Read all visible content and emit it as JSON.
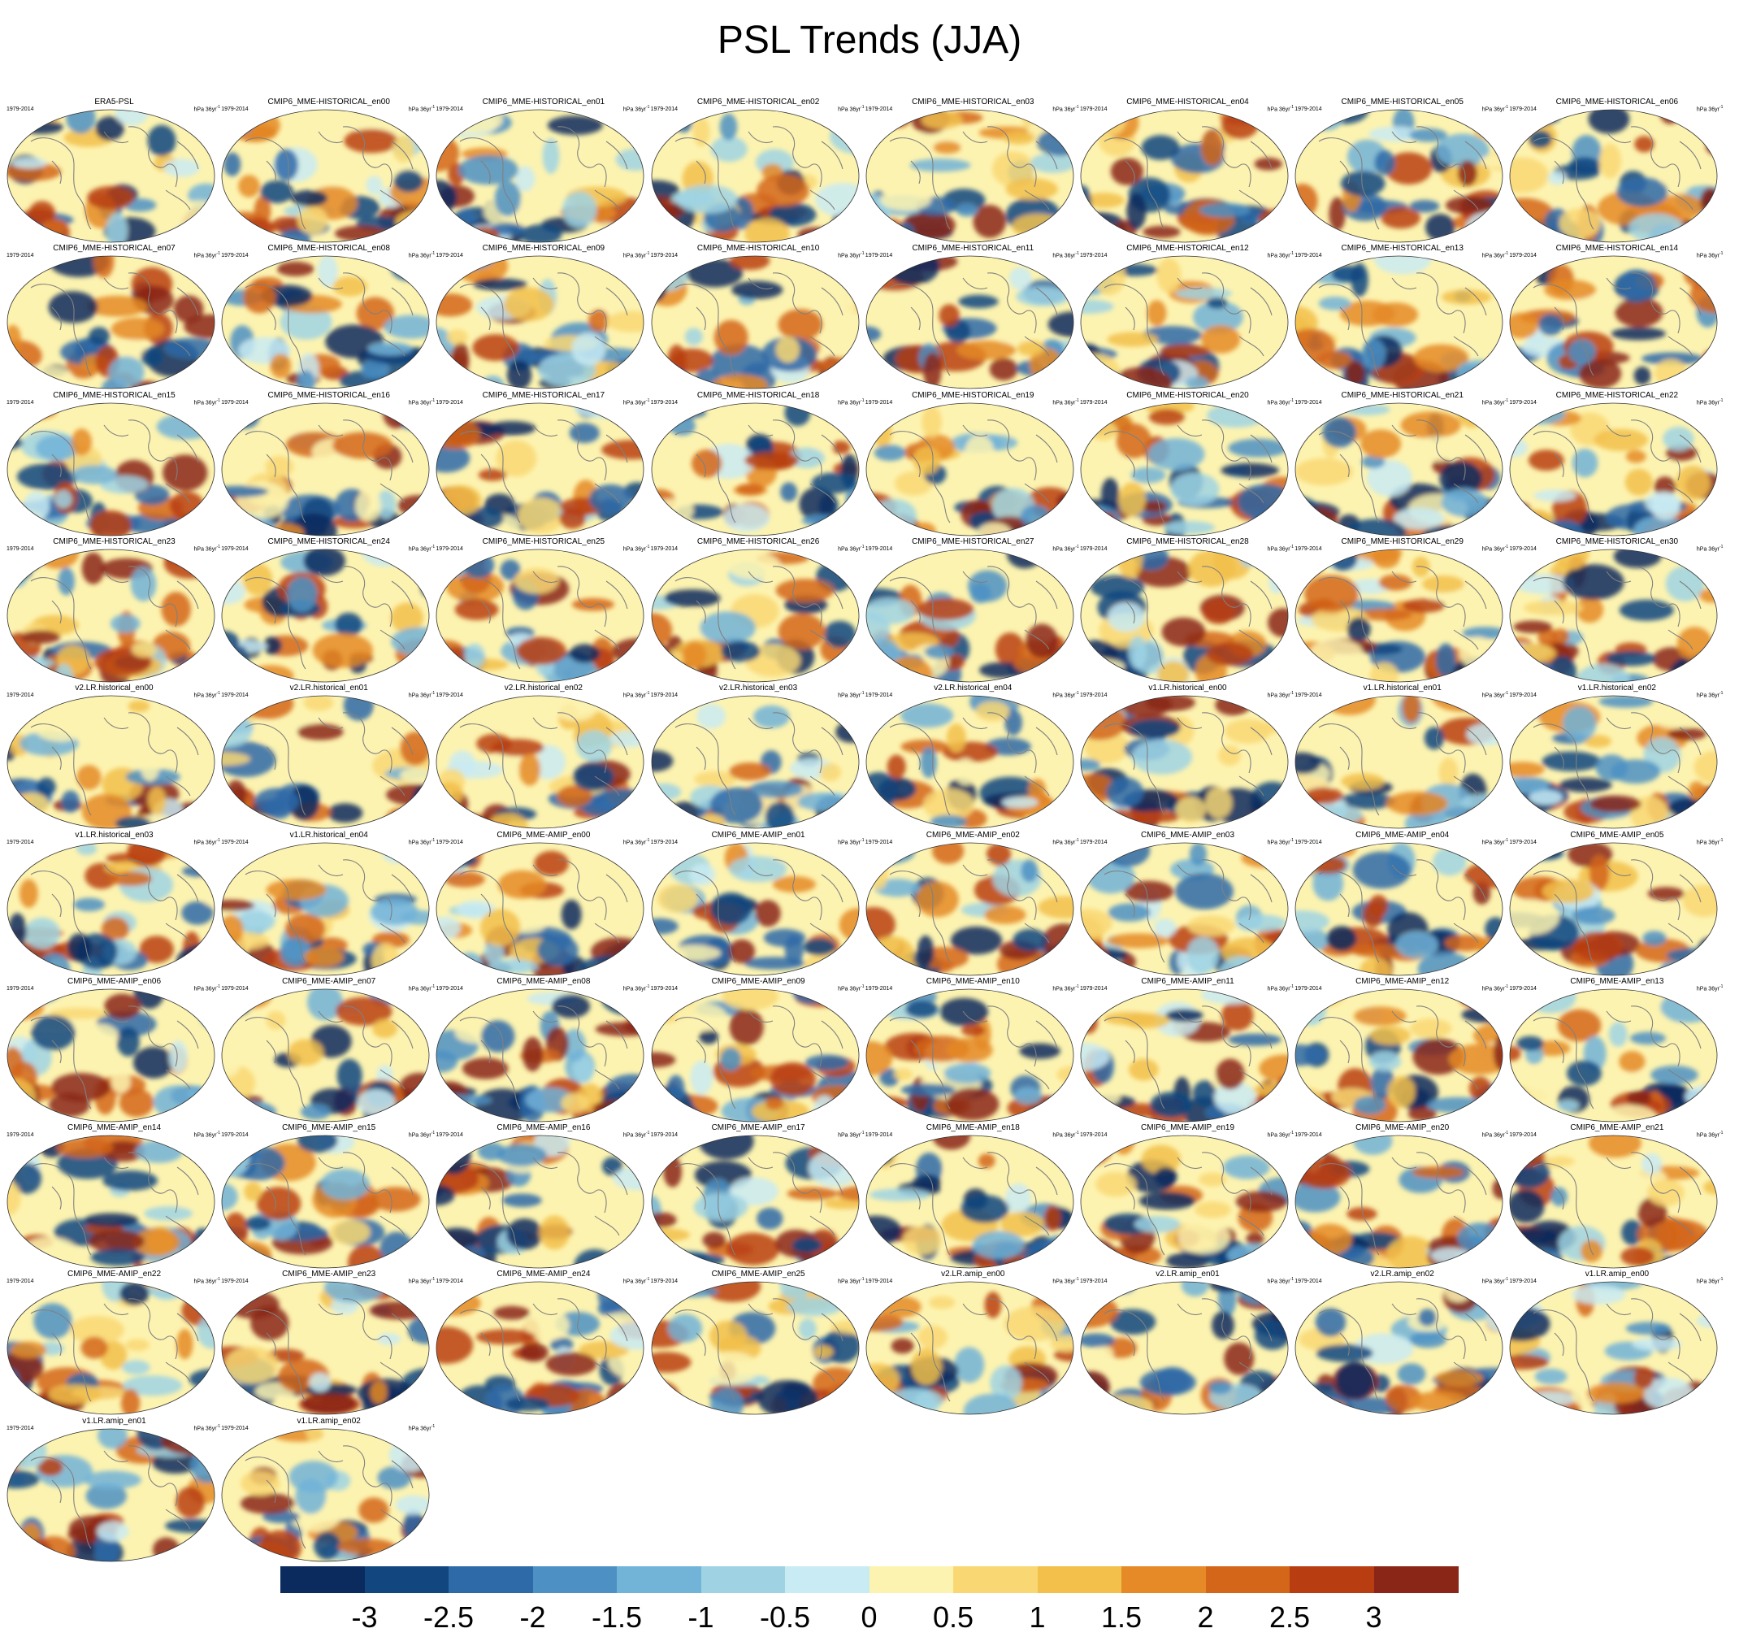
{
  "title": "PSL Trends (JJA)",
  "period": "1979-2014",
  "units": "hPa 36yr",
  "units_superscript": "-1",
  "panels": [
    "ERA5-PSL",
    "CMIP6_MME-HISTORICAL_en00",
    "CMIP6_MME-HISTORICAL_en01",
    "CMIP6_MME-HISTORICAL_en02",
    "CMIP6_MME-HISTORICAL_en03",
    "CMIP6_MME-HISTORICAL_en04",
    "CMIP6_MME-HISTORICAL_en05",
    "CMIP6_MME-HISTORICAL_en06",
    "CMIP6_MME-HISTORICAL_en07",
    "CMIP6_MME-HISTORICAL_en08",
    "CMIP6_MME-HISTORICAL_en09",
    "CMIP6_MME-HISTORICAL_en10",
    "CMIP6_MME-HISTORICAL_en11",
    "CMIP6_MME-HISTORICAL_en12",
    "CMIP6_MME-HISTORICAL_en13",
    "CMIP6_MME-HISTORICAL_en14",
    "CMIP6_MME-HISTORICAL_en15",
    "CMIP6_MME-HISTORICAL_en16",
    "CMIP6_MME-HISTORICAL_en17",
    "CMIP6_MME-HISTORICAL_en18",
    "CMIP6_MME-HISTORICAL_en19",
    "CMIP6_MME-HISTORICAL_en20",
    "CMIP6_MME-HISTORICAL_en21",
    "CMIP6_MME-HISTORICAL_en22",
    "CMIP6_MME-HISTORICAL_en23",
    "CMIP6_MME-HISTORICAL_en24",
    "CMIP6_MME-HISTORICAL_en25",
    "CMIP6_MME-HISTORICAL_en26",
    "CMIP6_MME-HISTORICAL_en27",
    "CMIP6_MME-HISTORICAL_en28",
    "CMIP6_MME-HISTORICAL_en29",
    "CMIP6_MME-HISTORICAL_en30",
    "v2.LR.historical_en00",
    "v2.LR.historical_en01",
    "v2.LR.historical_en02",
    "v2.LR.historical_en03",
    "v2.LR.historical_en04",
    "v1.LR.historical_en00",
    "v1.LR.historical_en01",
    "v1.LR.historical_en02",
    "v1.LR.historical_en03",
    "v1.LR.historical_en04",
    "CMIP6_MME-AMIP_en00",
    "CMIP6_MME-AMIP_en01",
    "CMIP6_MME-AMIP_en02",
    "CMIP6_MME-AMIP_en03",
    "CMIP6_MME-AMIP_en04",
    "CMIP6_MME-AMIP_en05",
    "CMIP6_MME-AMIP_en06",
    "CMIP6_MME-AMIP_en07",
    "CMIP6_MME-AMIP_en08",
    "CMIP6_MME-AMIP_en09",
    "CMIP6_MME-AMIP_en10",
    "CMIP6_MME-AMIP_en11",
    "CMIP6_MME-AMIP_en12",
    "CMIP6_MME-AMIP_en13",
    "CMIP6_MME-AMIP_en14",
    "CMIP6_MME-AMIP_en15",
    "CMIP6_MME-AMIP_en16",
    "CMIP6_MME-AMIP_en17",
    "CMIP6_MME-AMIP_en18",
    "CMIP6_MME-AMIP_en19",
    "CMIP6_MME-AMIP_en20",
    "CMIP6_MME-AMIP_en21",
    "CMIP6_MME-AMIP_en22",
    "CMIP6_MME-AMIP_en23",
    "CMIP6_MME-AMIP_en24",
    "CMIP6_MME-AMIP_en25",
    "v2.LR.amip_en00",
    "v2.LR.amip_en01",
    "v2.LR.amip_en02",
    "v1.LR.amip_en00",
    "v1.LR.amip_en01",
    "v1.LR.amip_en02"
  ],
  "colorbar": {
    "labels": [
      "-3",
      "-2.5",
      "-2",
      "-1.5",
      "-1",
      "-0.5",
      "0",
      "0.5",
      "1",
      "1.5",
      "2",
      "2.5",
      "3"
    ],
    "colors": [
      "#0b2a5e",
      "#12467f",
      "#2e6aa8",
      "#4c90c4",
      "#72b3d8",
      "#9fd3e4",
      "#c9ebf3",
      "#fdf3b0",
      "#f9d874",
      "#f2c04b",
      "#e58a26",
      "#d4661a",
      "#b83e12",
      "#8a2617"
    ]
  },
  "colors": {
    "coastline": "#808080",
    "map_border": "#333333"
  }
}
